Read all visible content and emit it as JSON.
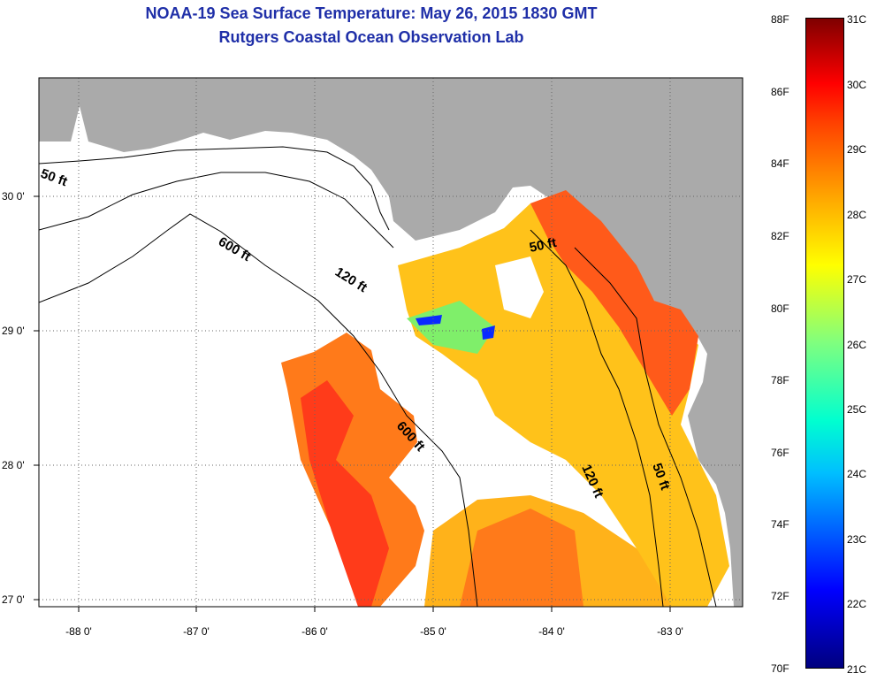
{
  "title": {
    "line1": "NOAA-19 Sea Surface Temperature:  May 26, 2015 1830 GMT",
    "line2": "Rutgers Coastal Ocean Observation Lab"
  },
  "axes": {
    "x_ticks": [
      "-88 0'",
      "-87 0'",
      "-86 0'",
      "-85 0'",
      "-84 0'",
      "-83 0'"
    ],
    "y_ticks": [
      "30 0'",
      "29 0'",
      "28 0'",
      "27 0'"
    ]
  },
  "contours": {
    "c600": "600 ft",
    "c120": "120 ft",
    "c50": "50 ft"
  },
  "colorbar": {
    "fahrenheit": [
      "88F",
      "86F",
      "84F",
      "82F",
      "80F",
      "78F",
      "76F",
      "74F",
      "72F",
      "70F"
    ],
    "celsius": [
      "31C",
      "30C",
      "29C",
      "28C",
      "27C",
      "26C",
      "25C",
      "24C",
      "23C",
      "22C",
      "21C"
    ]
  },
  "colors": {
    "land": "#aaaaaa",
    "title": "#1f2fa8",
    "sst_warm": "#ff7a1a",
    "sst_hot": "#ff3b1a",
    "sst_mid": "#ffc21a",
    "sst_cool": "#0a2aff"
  }
}
